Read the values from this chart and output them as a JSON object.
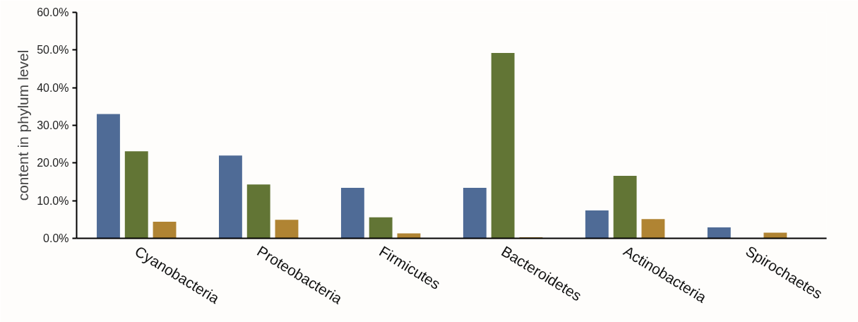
{
  "chart_data": {
    "type": "bar",
    "ylabel": "content in phylum level",
    "categories": [
      "Cyanobacteria",
      "Proteobacteria",
      "Firmicutes",
      "Bacteroidetes",
      "Actinobacteria",
      "Spirochaetes"
    ],
    "series": [
      {
        "color": "#4f6b96",
        "values": [
          33.0,
          22.0,
          13.4,
          13.4,
          7.4,
          2.9
        ]
      },
      {
        "color": "#627535",
        "values": [
          23.1,
          14.3,
          5.6,
          49.2,
          16.6,
          0
        ]
      },
      {
        "color": "#b08433",
        "values": [
          4.4,
          4.9,
          1.3,
          0.3,
          5.1,
          1.5
        ]
      }
    ],
    "ylim": [
      0,
      60
    ],
    "yticks": [
      {
        "value": 0,
        "label": "0.0%"
      },
      {
        "value": 10,
        "label": "10.0%"
      },
      {
        "value": 20,
        "label": "20.0%"
      },
      {
        "value": 30,
        "label": "30.0%"
      },
      {
        "value": 40,
        "label": "40.0%"
      },
      {
        "value": 50,
        "label": "50.0%"
      },
      {
        "value": 60,
        "label": "60.0%"
      }
    ],
    "grid": false
  }
}
